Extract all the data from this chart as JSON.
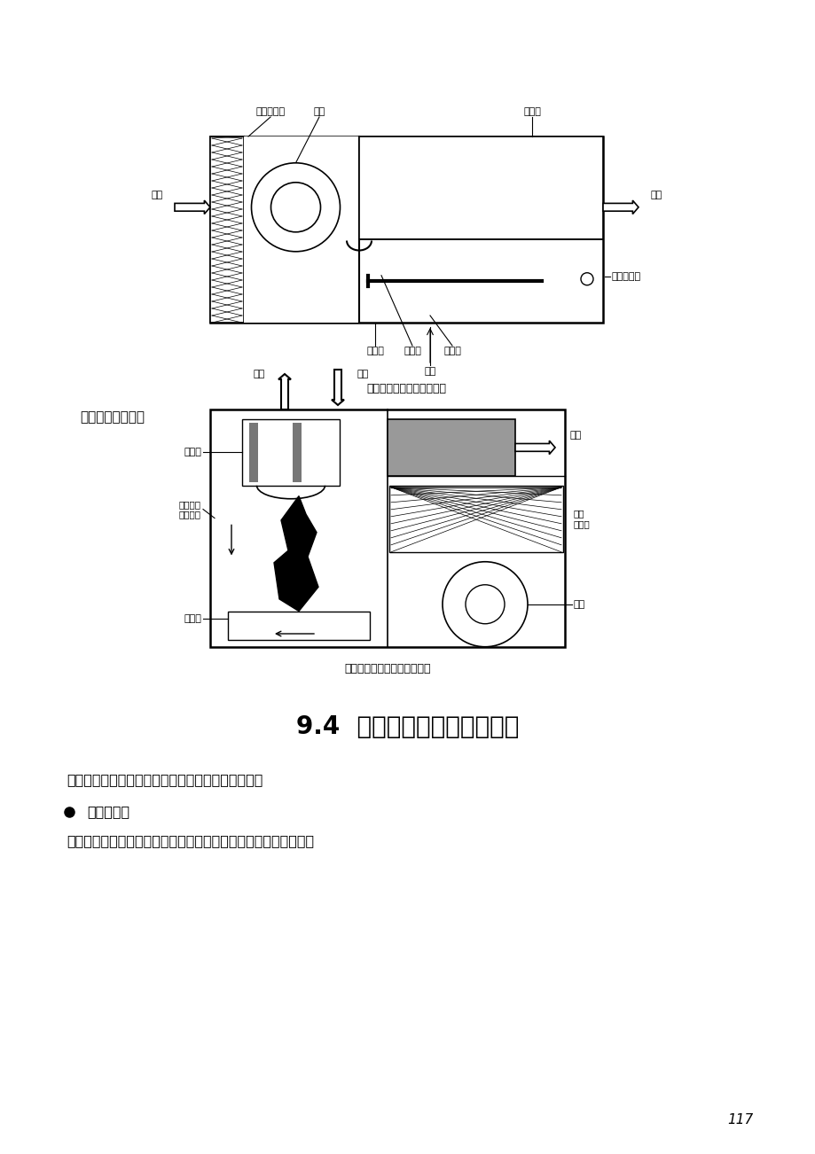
{
  "bg_color": "#ffffff",
  "page_width": 9.2,
  "page_height": 13.02,
  "title1": "卧式燃气热风机结构示意图",
  "title2": "落地式燃油热风机结构示意图",
  "section_title": "9.4  燃油燃气冷热源的燃烧器",
  "subtitle1": "落地式燃油热风机",
  "body_text1": "燃烧器是将燃油或燃气的化学能转变为热能的设备。",
  "bullet1": "燃油燃烧器",
  "body_text2": "由雾化器和调风器组成。通常与风机、油泵、控制器组装在一起。",
  "page_number": "117",
  "text_color": "#000000",
  "line_color": "#000000",
  "gray_color": "#808080",
  "light_gray": "#c0c0c0"
}
